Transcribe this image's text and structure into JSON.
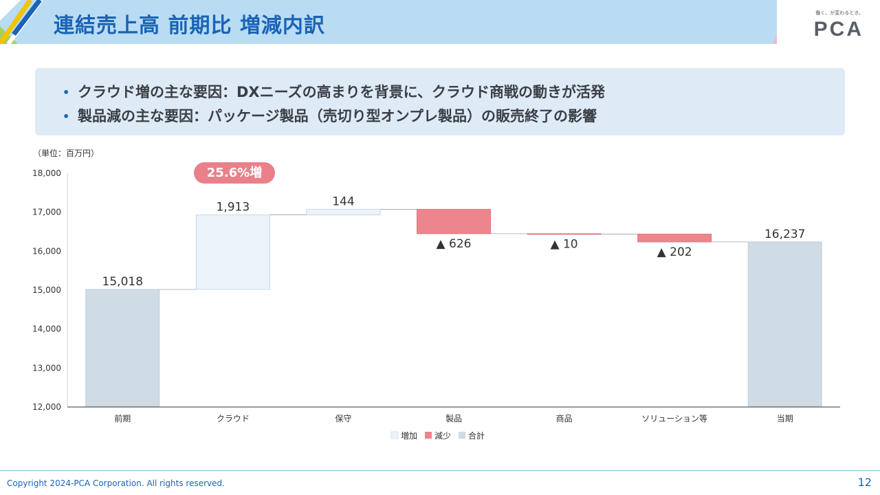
{
  "header": {
    "title": "連結売上高 前期比 増減内訳"
  },
  "brand": {
    "tagline": "働く、が変わるとき。",
    "logo": "PCA"
  },
  "callout": {
    "bullets": [
      "クラウド増の主な要因：DXニーズの高まりを背景に、クラウド商戦の動きが活発",
      "製品減の主な要因：パッケージ製品（売切り型オンプレ製品）の販売終了の影響"
    ]
  },
  "unit_label": "（単位：百万円）",
  "badge": "25.6%増",
  "footer": {
    "copyright": "Copyright 2024-PCA Corporation. All rights reserved.",
    "page": "12"
  },
  "colors": {
    "increase": "#ecf3fa",
    "decrease": "#ed858d",
    "total": "#cfdbe5",
    "accent": "#1a63b5"
  },
  "chart_data": {
    "type": "bar",
    "subtype": "waterfall",
    "categories": [
      "前期",
      "クラウド",
      "保守",
      "製品",
      "商品",
      "ソリューション等",
      "当期"
    ],
    "values": [
      15018,
      1913,
      144,
      -626,
      -10,
      -202,
      16237
    ],
    "kinds": [
      "total",
      "increase",
      "increase",
      "decrease",
      "decrease",
      "decrease",
      "total"
    ],
    "data_labels": [
      "15,018",
      "1,913",
      "144",
      "▲ 626",
      "▲ 10",
      "▲ 202",
      "16,237"
    ],
    "ylim": [
      12000,
      18000
    ],
    "yticks": [
      12000,
      13000,
      14000,
      15000,
      16000,
      17000,
      18000
    ],
    "ytick_labels": [
      "12,000",
      "13,000",
      "14,000",
      "15,000",
      "16,000",
      "17,000",
      "18,000"
    ],
    "legend": {
      "position": "bottom",
      "items": [
        {
          "name": "増加",
          "kind": "increase"
        },
        {
          "name": "減少",
          "kind": "decrease"
        },
        {
          "name": "合計",
          "kind": "total"
        }
      ]
    },
    "grid": false
  }
}
